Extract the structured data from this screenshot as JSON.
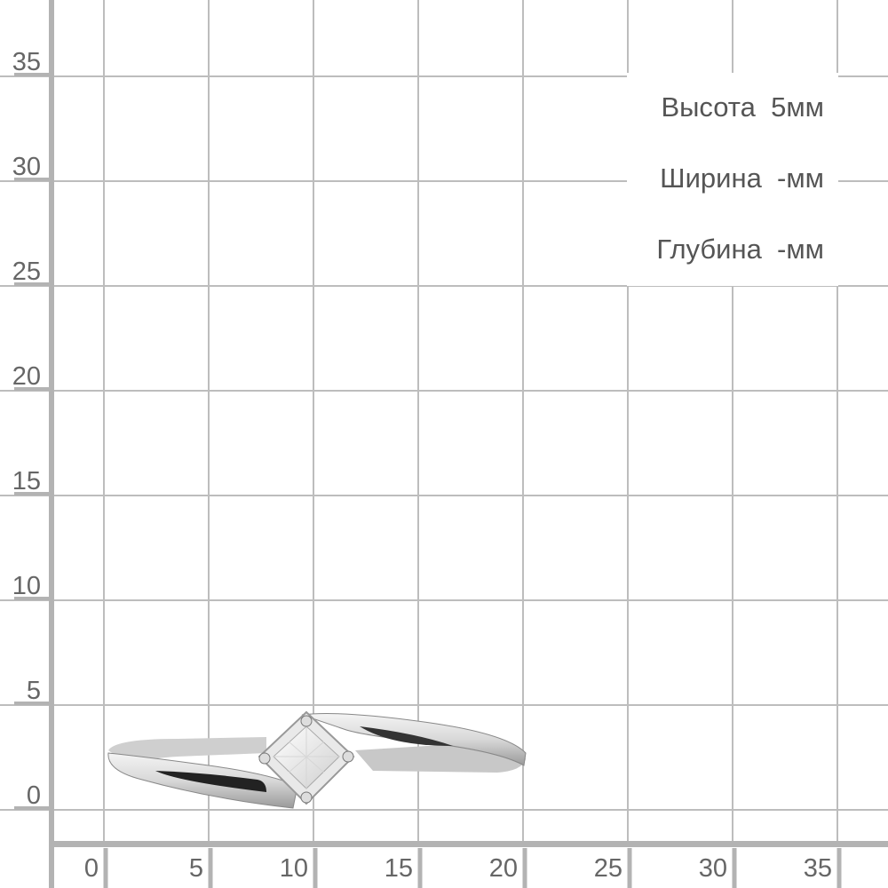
{
  "ruler": {
    "x_ticks": [
      "0",
      "5",
      "10",
      "15",
      "20",
      "25",
      "30",
      "35"
    ],
    "y_ticks": [
      "0",
      "5",
      "10",
      "15",
      "20",
      "25",
      "30",
      "35"
    ],
    "unit_step_mm": 5,
    "grid_color": "#bdbdbd",
    "axis_color": "#b3b3b3",
    "label_color": "#666666"
  },
  "specs": {
    "height": "Высота  5мм",
    "width": "Ширина  -мм",
    "depth": "Глубина  -мм"
  },
  "product": {
    "image": "ring-icon",
    "description_visible": false
  }
}
